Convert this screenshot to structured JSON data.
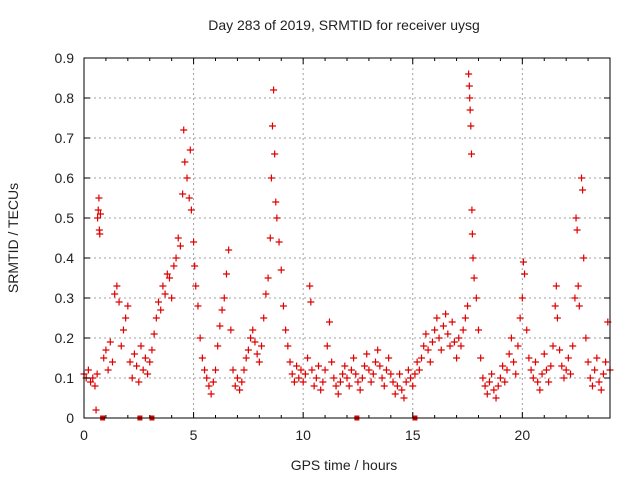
{
  "chart_data": {
    "type": "scatter",
    "title": "Day 283 of 2019, SRMTID for receiver uysg",
    "xlabel": "GPS time / hours",
    "ylabel": "SRMTID / TECUs",
    "xlim": [
      0,
      24
    ],
    "ylim": [
      0,
      0.9
    ],
    "x_ticks": [
      0,
      5,
      10,
      15,
      20
    ],
    "y_ticks": [
      0,
      0.1,
      0.2,
      0.3,
      0.4,
      0.5,
      0.6,
      0.7,
      0.8,
      0.9
    ],
    "x_tick_labels": [
      "0",
      "5",
      "10",
      "15",
      "20"
    ],
    "y_tick_labels": [
      "0",
      "0.1",
      "0.2",
      "0.3",
      "0.4",
      "0.5",
      "0.6",
      "0.7",
      "0.8",
      "0.9"
    ],
    "grid": true,
    "marker": "+",
    "color": "#e00000",
    "series": [
      {
        "name": "SRMTID",
        "points": [
          [
            0.0,
            0.11
          ],
          [
            0.1,
            0.1
          ],
          [
            0.2,
            0.12
          ],
          [
            0.3,
            0.09
          ],
          [
            0.4,
            0.1
          ],
          [
            0.5,
            0.08
          ],
          [
            0.55,
            0.02
          ],
          [
            0.6,
            0.11
          ],
          [
            0.62,
            0.5
          ],
          [
            0.65,
            0.52
          ],
          [
            0.68,
            0.55
          ],
          [
            0.7,
            0.47
          ],
          [
            0.72,
            0.46
          ],
          [
            0.75,
            0.51
          ],
          [
            0.9,
            0.15
          ],
          [
            1.0,
            0.17
          ],
          [
            1.1,
            0.12
          ],
          [
            1.2,
            0.19
          ],
          [
            1.3,
            0.14
          ],
          [
            1.4,
            0.31
          ],
          [
            1.5,
            0.33
          ],
          [
            1.6,
            0.29
          ],
          [
            1.7,
            0.18
          ],
          [
            1.8,
            0.22
          ],
          [
            1.9,
            0.25
          ],
          [
            2.0,
            0.28
          ],
          [
            2.1,
            0.14
          ],
          [
            2.2,
            0.1
          ],
          [
            2.3,
            0.16
          ],
          [
            2.4,
            0.13
          ],
          [
            2.5,
            0.09
          ],
          [
            2.6,
            0.18
          ],
          [
            2.7,
            0.12
          ],
          [
            2.8,
            0.15
          ],
          [
            2.9,
            0.11
          ],
          [
            3.0,
            0.14
          ],
          [
            3.1,
            0.17
          ],
          [
            3.2,
            0.21
          ],
          [
            3.3,
            0.25
          ],
          [
            3.4,
            0.29
          ],
          [
            3.5,
            0.27
          ],
          [
            3.6,
            0.33
          ],
          [
            3.7,
            0.31
          ],
          [
            3.8,
            0.36
          ],
          [
            3.9,
            0.35
          ],
          [
            4.0,
            0.3
          ],
          [
            4.1,
            0.38
          ],
          [
            4.2,
            0.4
          ],
          [
            4.3,
            0.45
          ],
          [
            4.4,
            0.43
          ],
          [
            4.5,
            0.56
          ],
          [
            4.55,
            0.72
          ],
          [
            4.6,
            0.64
          ],
          [
            4.7,
            0.6
          ],
          [
            4.8,
            0.55
          ],
          [
            4.85,
            0.67
          ],
          [
            4.9,
            0.52
          ],
          [
            5.0,
            0.44
          ],
          [
            5.05,
            0.38
          ],
          [
            5.1,
            0.33
          ],
          [
            5.2,
            0.28
          ],
          [
            5.3,
            0.2
          ],
          [
            5.4,
            0.15
          ],
          [
            5.5,
            0.12
          ],
          [
            5.6,
            0.1
          ],
          [
            5.7,
            0.08
          ],
          [
            5.8,
            0.06
          ],
          [
            5.9,
            0.09
          ],
          [
            6.0,
            0.12
          ],
          [
            6.1,
            0.18
          ],
          [
            6.2,
            0.23
          ],
          [
            6.3,
            0.27
          ],
          [
            6.4,
            0.3
          ],
          [
            6.5,
            0.36
          ],
          [
            6.6,
            0.42
          ],
          [
            6.7,
            0.22
          ],
          [
            6.8,
            0.12
          ],
          [
            6.9,
            0.08
          ],
          [
            7.0,
            0.1
          ],
          [
            7.1,
            0.07
          ],
          [
            7.2,
            0.09
          ],
          [
            7.3,
            0.12
          ],
          [
            7.4,
            0.15
          ],
          [
            7.5,
            0.17
          ],
          [
            7.6,
            0.2
          ],
          [
            7.7,
            0.22
          ],
          [
            7.8,
            0.19
          ],
          [
            7.9,
            0.16
          ],
          [
            8.0,
            0.14
          ],
          [
            8.1,
            0.18
          ],
          [
            8.2,
            0.25
          ],
          [
            8.3,
            0.31
          ],
          [
            8.4,
            0.35
          ],
          [
            8.5,
            0.45
          ],
          [
            8.55,
            0.6
          ],
          [
            8.6,
            0.73
          ],
          [
            8.65,
            0.82
          ],
          [
            8.7,
            0.66
          ],
          [
            8.75,
            0.54
          ],
          [
            8.8,
            0.5
          ],
          [
            8.9,
            0.44
          ],
          [
            9.0,
            0.37
          ],
          [
            9.1,
            0.28
          ],
          [
            9.2,
            0.22
          ],
          [
            9.3,
            0.18
          ],
          [
            9.4,
            0.14
          ],
          [
            9.5,
            0.11
          ],
          [
            9.6,
            0.09
          ],
          [
            9.7,
            0.13
          ],
          [
            9.8,
            0.1
          ],
          [
            9.9,
            0.12
          ],
          [
            10.0,
            0.09
          ],
          [
            10.1,
            0.11
          ],
          [
            10.2,
            0.15
          ],
          [
            10.3,
            0.33
          ],
          [
            10.35,
            0.29
          ],
          [
            10.4,
            0.12
          ],
          [
            10.5,
            0.08
          ],
          [
            10.6,
            0.1
          ],
          [
            10.7,
            0.13
          ],
          [
            10.8,
            0.07
          ],
          [
            10.9,
            0.09
          ],
          [
            11.0,
            0.12
          ],
          [
            11.1,
            0.18
          ],
          [
            11.2,
            0.24
          ],
          [
            11.3,
            0.14
          ],
          [
            11.4,
            0.1
          ],
          [
            11.5,
            0.08
          ],
          [
            11.6,
            0.06
          ],
          [
            11.7,
            0.09
          ],
          [
            11.8,
            0.11
          ],
          [
            11.9,
            0.13
          ],
          [
            12.0,
            0.1
          ],
          [
            12.1,
            0.08
          ],
          [
            12.2,
            0.12
          ],
          [
            12.3,
            0.15
          ],
          [
            12.4,
            0.11
          ],
          [
            12.5,
            0.09
          ],
          [
            12.6,
            0.07
          ],
          [
            12.7,
            0.1
          ],
          [
            12.8,
            0.13
          ],
          [
            12.9,
            0.16
          ],
          [
            13.0,
            0.12
          ],
          [
            13.1,
            0.09
          ],
          [
            13.2,
            0.11
          ],
          [
            13.3,
            0.14
          ],
          [
            13.4,
            0.17
          ],
          [
            13.5,
            0.13
          ],
          [
            13.6,
            0.1
          ],
          [
            13.7,
            0.08
          ],
          [
            13.8,
            0.12
          ],
          [
            13.9,
            0.15
          ],
          [
            14.0,
            0.11
          ],
          [
            14.1,
            0.09
          ],
          [
            14.2,
            0.06
          ],
          [
            14.3,
            0.08
          ],
          [
            14.4,
            0.11
          ],
          [
            14.5,
            0.07
          ],
          [
            14.6,
            0.05
          ],
          [
            14.7,
            0.09
          ],
          [
            14.8,
            0.12
          ],
          [
            14.9,
            0.1
          ],
          [
            15.0,
            0.08
          ],
          [
            15.1,
            0.11
          ],
          [
            15.2,
            0.14
          ],
          [
            15.3,
            0.12
          ],
          [
            15.4,
            0.15
          ],
          [
            15.5,
            0.18
          ],
          [
            15.6,
            0.21
          ],
          [
            15.7,
            0.17
          ],
          [
            15.8,
            0.14
          ],
          [
            15.9,
            0.19
          ],
          [
            16.0,
            0.22
          ],
          [
            16.1,
            0.25
          ],
          [
            16.2,
            0.2
          ],
          [
            16.3,
            0.17
          ],
          [
            16.4,
            0.23
          ],
          [
            16.5,
            0.26
          ],
          [
            16.6,
            0.21
          ],
          [
            16.7,
            0.18
          ],
          [
            16.8,
            0.24
          ],
          [
            16.9,
            0.19
          ],
          [
            17.0,
            0.15
          ],
          [
            17.1,
            0.2
          ],
          [
            17.2,
            0.18
          ],
          [
            17.3,
            0.22
          ],
          [
            17.4,
            0.25
          ],
          [
            17.5,
            0.28
          ],
          [
            17.55,
            0.86
          ],
          [
            17.58,
            0.83
          ],
          [
            17.6,
            0.8
          ],
          [
            17.62,
            0.77
          ],
          [
            17.65,
            0.73
          ],
          [
            17.68,
            0.66
          ],
          [
            17.7,
            0.52
          ],
          [
            17.72,
            0.46
          ],
          [
            17.75,
            0.4
          ],
          [
            17.8,
            0.35
          ],
          [
            17.9,
            0.3
          ],
          [
            18.0,
            0.22
          ],
          [
            18.1,
            0.15
          ],
          [
            18.2,
            0.1
          ],
          [
            18.3,
            0.08
          ],
          [
            18.4,
            0.06
          ],
          [
            18.5,
            0.09
          ],
          [
            18.6,
            0.11
          ],
          [
            18.7,
            0.07
          ],
          [
            18.8,
            0.05
          ],
          [
            18.9,
            0.08
          ],
          [
            19.0,
            0.1
          ],
          [
            19.1,
            0.13
          ],
          [
            19.2,
            0.09
          ],
          [
            19.3,
            0.12
          ],
          [
            19.4,
            0.16
          ],
          [
            19.5,
            0.2
          ],
          [
            19.6,
            0.14
          ],
          [
            19.7,
            0.11
          ],
          [
            19.8,
            0.18
          ],
          [
            19.9,
            0.25
          ],
          [
            20.0,
            0.3
          ],
          [
            20.05,
            0.39
          ],
          [
            20.1,
            0.36
          ],
          [
            20.2,
            0.22
          ],
          [
            20.3,
            0.15
          ],
          [
            20.4,
            0.12
          ],
          [
            20.5,
            0.1
          ],
          [
            20.6,
            0.14
          ],
          [
            20.7,
            0.09
          ],
          [
            20.8,
            0.07
          ],
          [
            20.9,
            0.11
          ],
          [
            21.0,
            0.16
          ],
          [
            21.1,
            0.12
          ],
          [
            21.2,
            0.09
          ],
          [
            21.3,
            0.13
          ],
          [
            21.4,
            0.18
          ],
          [
            21.5,
            0.28
          ],
          [
            21.55,
            0.33
          ],
          [
            21.6,
            0.25
          ],
          [
            21.7,
            0.17
          ],
          [
            21.8,
            0.13
          ],
          [
            21.9,
            0.1
          ],
          [
            22.0,
            0.12
          ],
          [
            22.1,
            0.15
          ],
          [
            22.2,
            0.11
          ],
          [
            22.3,
            0.18
          ],
          [
            22.4,
            0.3
          ],
          [
            22.45,
            0.5
          ],
          [
            22.5,
            0.47
          ],
          [
            22.55,
            0.33
          ],
          [
            22.6,
            0.28
          ],
          [
            22.7,
            0.6
          ],
          [
            22.75,
            0.57
          ],
          [
            22.8,
            0.4
          ],
          [
            22.9,
            0.2
          ],
          [
            23.0,
            0.14
          ],
          [
            23.1,
            0.1
          ],
          [
            23.2,
            0.08
          ],
          [
            23.3,
            0.12
          ],
          [
            23.4,
            0.15
          ],
          [
            23.5,
            0.09
          ],
          [
            23.6,
            0.07
          ],
          [
            23.7,
            0.11
          ],
          [
            23.8,
            0.14
          ],
          [
            23.9,
            0.24
          ],
          [
            24.0,
            0.12
          ]
        ]
      }
    ],
    "zero_markers_x": [
      0.85,
      2.55,
      3.1,
      12.45,
      15.1
    ]
  }
}
